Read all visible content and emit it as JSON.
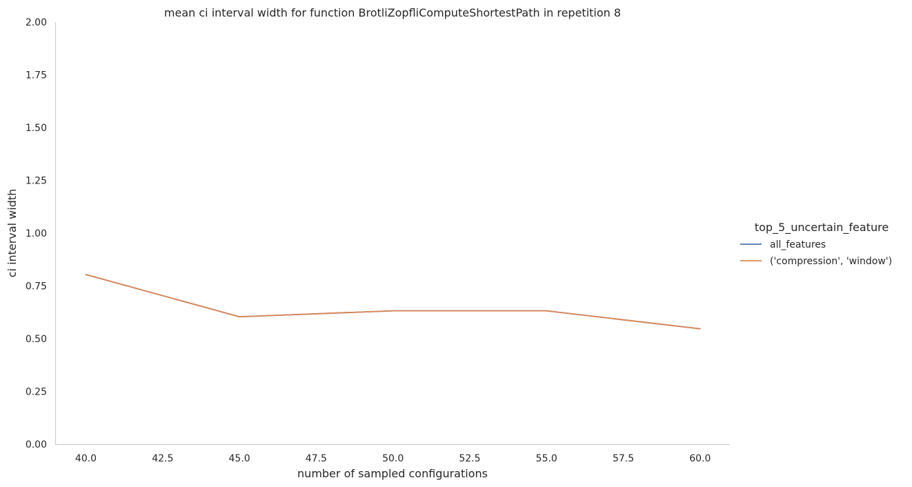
{
  "chart_data": {
    "type": "line",
    "title": "mean ci interval width for function BrotliZopfliComputeShortestPath in repetition 8",
    "xlabel": "number of sampled configurations",
    "ylabel": "ci interval width",
    "xlim": [
      39.0,
      60.97
    ],
    "ylim": [
      0.0,
      2.0
    ],
    "x_ticks": [
      "40.0",
      "42.5",
      "45.0",
      "47.5",
      "50.0",
      "52.5",
      "55.0",
      "57.5",
      "60.0"
    ],
    "y_ticks": [
      "0.00",
      "0.25",
      "0.50",
      "0.75",
      "1.00",
      "1.25",
      "1.50",
      "1.75",
      "2.00"
    ],
    "grid": false,
    "legend": {
      "title": "top_5_uncertain_feature",
      "placement": "right"
    },
    "x": [
      40,
      45,
      50,
      55,
      60
    ],
    "series": [
      {
        "name": "all_features",
        "color": "#4c72b0",
        "values": [
          0.804,
          0.604,
          0.632,
          0.632,
          0.547
        ]
      },
      {
        "name": "('compression', 'window')",
        "color": "#dd8452",
        "values": [
          0.804,
          0.604,
          0.632,
          0.632,
          0.547
        ]
      }
    ]
  }
}
